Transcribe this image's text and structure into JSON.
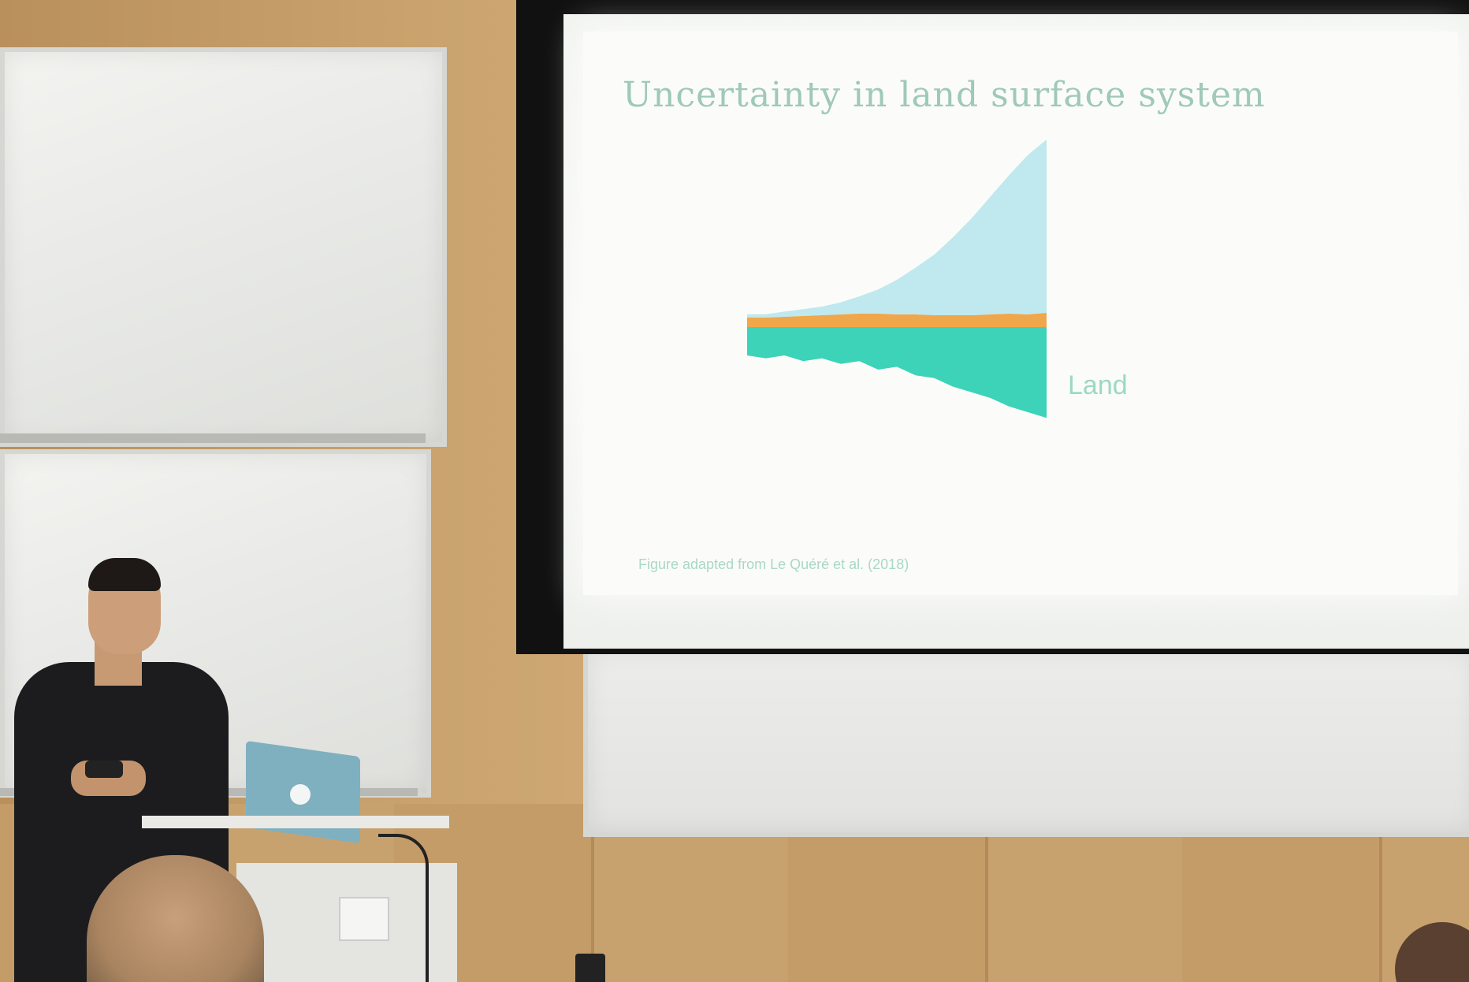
{
  "slide": {
    "title": "Uncertainty in land surface system",
    "land_label": "Land",
    "footer": "Figure adapted from Le Quéré et al. (2018)"
  },
  "chart_data": {
    "type": "area",
    "title": "",
    "xlabel": "",
    "ylabel": "",
    "series": [
      {
        "name": "",
        "color": "#bfe9ee",
        "description_kind": "upper source band"
      },
      {
        "name": "",
        "color": "#f0a64a",
        "description_kind": "middle source band"
      },
      {
        "name": "Land",
        "color": "#3cd3b8",
        "description_kind": "sink band"
      }
    ],
    "upper_band": [
      0.02,
      0.02,
      0.03,
      0.04,
      0.05,
      0.07,
      0.1,
      0.14,
      0.2,
      0.27,
      0.35,
      0.45,
      0.56,
      0.68,
      0.8,
      0.92,
      1.0
    ],
    "middle_band": [
      0.12,
      0.12,
      0.13,
      0.14,
      0.15,
      0.16,
      0.17,
      0.17,
      0.16,
      0.16,
      0.15,
      0.15,
      0.15,
      0.16,
      0.17,
      0.16,
      0.18
    ],
    "sink_band": [
      -0.2,
      -0.22,
      -0.2,
      -0.24,
      -0.22,
      -0.26,
      -0.24,
      -0.3,
      -0.28,
      -0.34,
      -0.36,
      -0.42,
      -0.46,
      -0.5,
      -0.56,
      -0.6,
      -0.64
    ],
    "grid": false
  }
}
